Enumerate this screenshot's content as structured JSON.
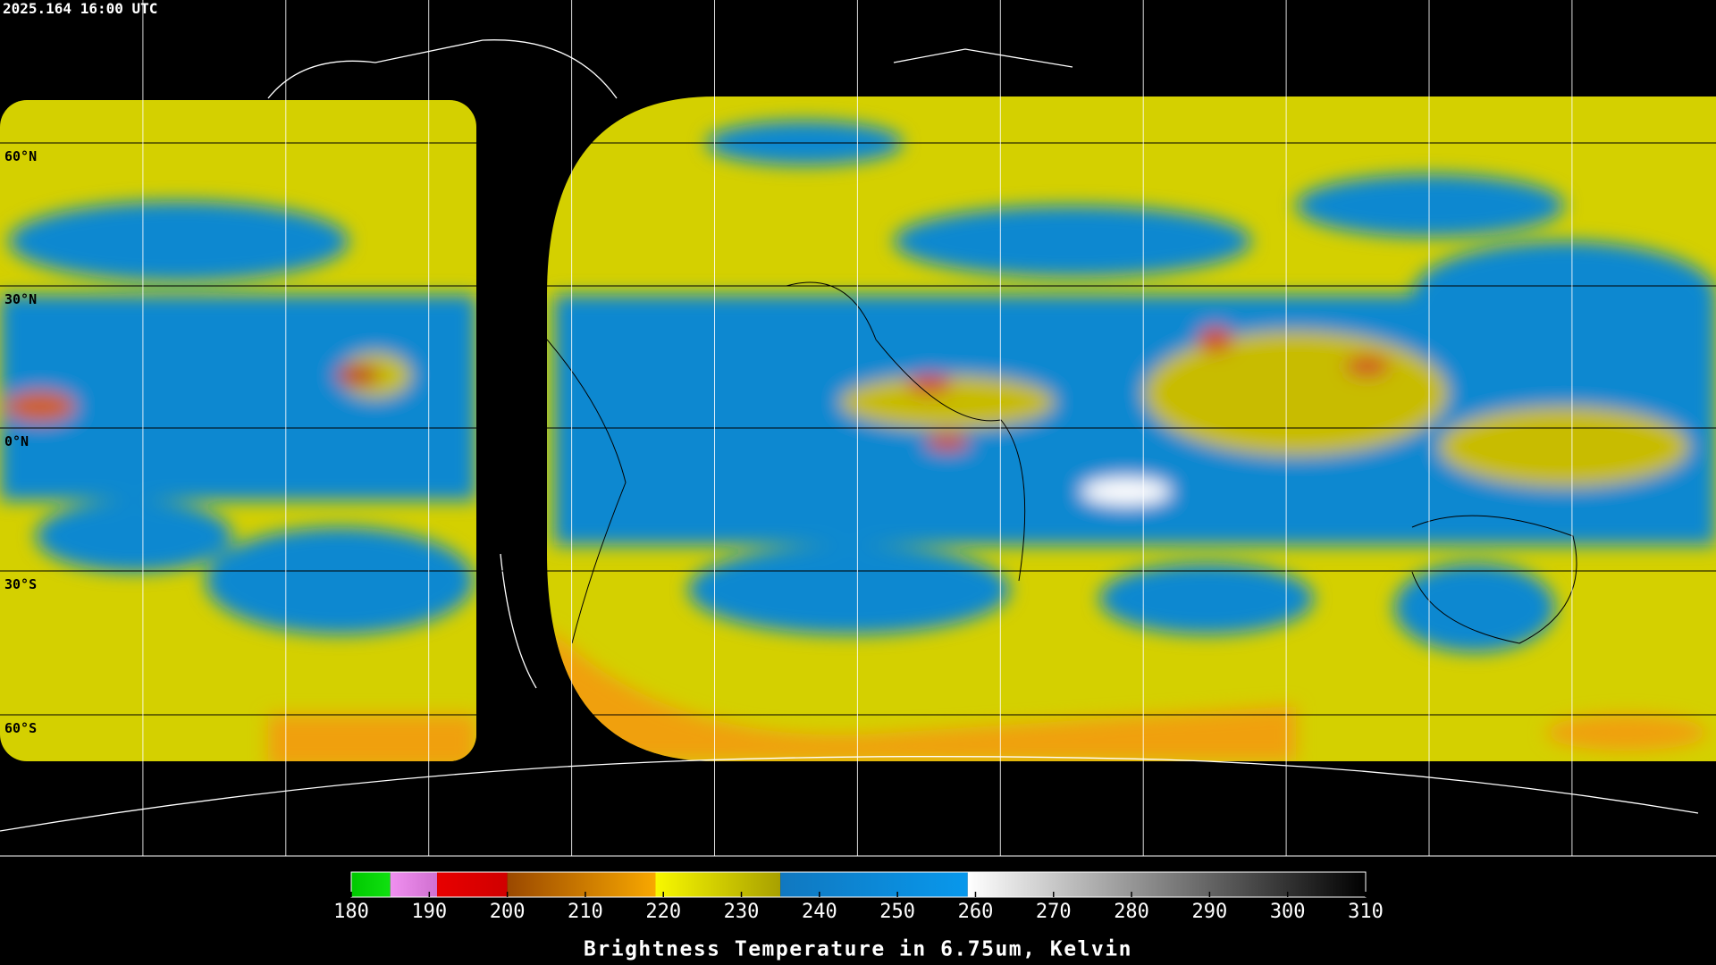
{
  "header": {
    "timestamp": "2025.164 16:00 UTC"
  },
  "map": {
    "lat_labels": [
      "60°N",
      "30°N",
      "0°N",
      "30°S",
      "60°S"
    ]
  },
  "colorbar": {
    "title": "Brightness Temperature in 6.75um, Kelvin",
    "range": [
      180,
      310
    ],
    "ticks": [
      180,
      190,
      200,
      210,
      220,
      230,
      240,
      250,
      260,
      270,
      280,
      290,
      300,
      310
    ],
    "segments": [
      {
        "from": 180,
        "to": 185,
        "colors": [
          "#00c800",
          "#10e010"
        ]
      },
      {
        "from": 185,
        "to": 191,
        "colors": [
          "#f090f0",
          "#d070d0"
        ]
      },
      {
        "from": 191,
        "to": 200,
        "colors": [
          "#e80000",
          "#d00000"
        ]
      },
      {
        "from": 200,
        "to": 219,
        "colors": [
          "#9a4800",
          "#f8a800"
        ]
      },
      {
        "from": 219,
        "to": 235,
        "colors": [
          "#f8f800",
          "#a8a000"
        ]
      },
      {
        "from": 235,
        "to": 259,
        "colors": [
          "#1078c0",
          "#0898ec"
        ]
      },
      {
        "from": 259,
        "to": 310,
        "colors": [
          "#ffffff",
          "#000000"
        ]
      }
    ]
  }
}
